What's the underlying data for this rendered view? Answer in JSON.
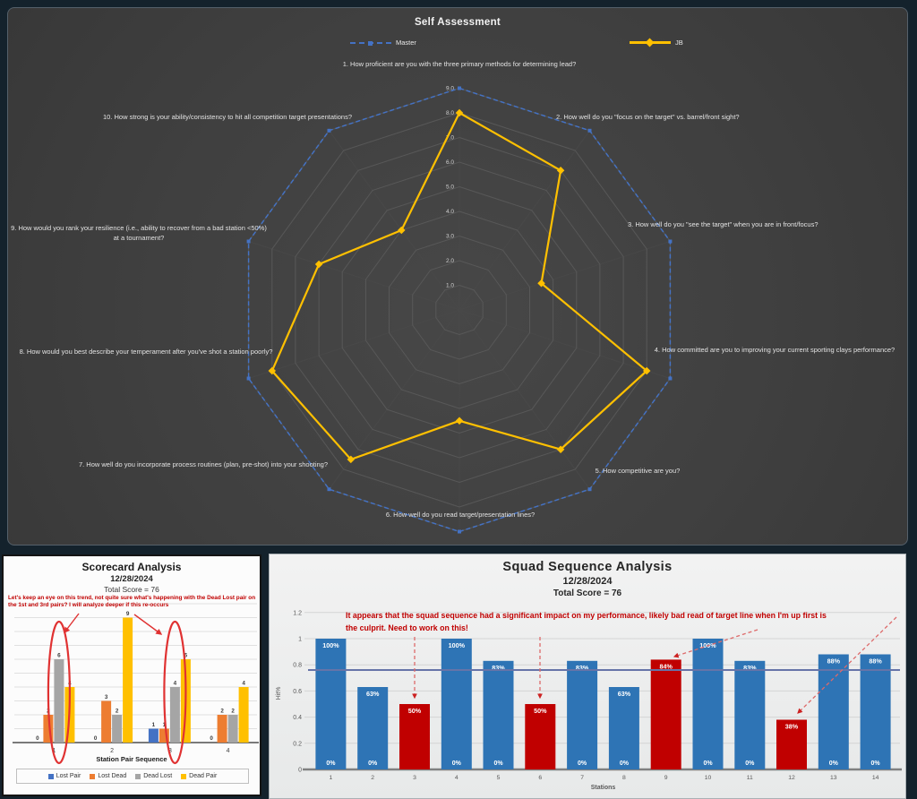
{
  "page": {
    "background": "#14222c"
  },
  "chart_data": [
    {
      "type": "radar",
      "title": "Self Assessment",
      "legend_position": "top",
      "axis_range": [
        0,
        9
      ],
      "ring_labels": [
        "9.0",
        "8.0",
        "7.0",
        "6.0",
        "5.0",
        "4.0",
        "3.0",
        "2.0",
        "1.0"
      ],
      "categories": [
        "1.  How proficient are you with the three primary methods for determining lead?",
        "2.  How well do you \"focus on the target\" vs. barrel/front sight?",
        "3.  How well do you \"see the target\" when you are in front/focus?",
        "4.  How committed are you to improving your current sporting clays performance?",
        "5.  How competitive are you?",
        "6.  How well do you read target/presentation lines?",
        "7.  How well do you incorporate process routines (plan, pre-shot) into your shooting?",
        "8.  How would you best describe your temperament after you've shot a station poorly?",
        "9.  How would you rank your resilience (i.e., ability to recover from a bad station <50%) at a tournament?",
        "10.  How strong is your ability/consistency to hit all competition target presentations?"
      ],
      "series": [
        {
          "name": "Master",
          "color": "#4472c4",
          "style": "dashed",
          "values": [
            9,
            9,
            9,
            9,
            9,
            9,
            9,
            9,
            9,
            9
          ]
        },
        {
          "name": "JB",
          "color": "#ffc000",
          "style": "solid",
          "values": [
            8,
            7,
            3.5,
            8,
            7,
            4.5,
            7.5,
            8,
            6,
            4
          ]
        }
      ]
    },
    {
      "type": "bar",
      "title": "Scorecard Analysis",
      "subtitle": "12/28/2024",
      "total": "Total Score = 76",
      "annotation": "Let's keep an eye on this trend, not quite sure what's happening with the Dead Lost pair on the 1st and 3rd pairs? I will analyze deeper if this re-occurs",
      "xlabel": "Station Pair Sequence",
      "categories": [
        "1",
        "2",
        "3",
        "4"
      ],
      "series": [
        {
          "name": "Lost Pair",
          "color": "#4472c4",
          "values": [
            0,
            0,
            1,
            0
          ]
        },
        {
          "name": "Lost Dead",
          "color": "#ed7d31",
          "values": [
            2,
            3,
            1,
            2
          ]
        },
        {
          "name": "Dead Lost",
          "color": "#a5a5a5",
          "values": [
            6,
            2,
            4,
            2
          ]
        },
        {
          "name": "Dead Pair",
          "color": "#ffc000",
          "values": [
            4,
            9,
            6,
            4
          ]
        }
      ],
      "ylim": [
        0,
        10
      ],
      "grid": true,
      "highlighted_groups": [
        1,
        3
      ],
      "highlighted_series": "Dead Lost"
    },
    {
      "type": "bar",
      "title": "Squad Sequence Analysis",
      "subtitle": "12/28/2024",
      "total": "Total Score = 76",
      "annotation": "It appears that the squad sequence had a significant impact on my performance, likely bad read of target line when I'm up first is the culprit.  Need to work on this!",
      "xlabel": "Stations",
      "ylabel": "Hit%",
      "ylim": [
        0,
        1.2
      ],
      "ytick_labels": [
        "0",
        "0.2",
        "0.4",
        "0.6",
        "0.8",
        "1",
        "1.2"
      ],
      "categories": [
        "1",
        "2",
        "3",
        "4",
        "5",
        "6",
        "7",
        "8",
        "9",
        "10",
        "11",
        "12",
        "13",
        "14"
      ],
      "values": [
        1.0,
        0.63,
        0.5,
        1.0,
        0.83,
        0.5,
        0.83,
        0.63,
        0.84,
        1.0,
        0.83,
        0.38,
        0.88,
        0.88
      ],
      "labels": [
        "100%",
        "63%",
        "50%",
        "100%",
        "83%",
        "50%",
        "83%",
        "63%",
        "84%",
        "100%",
        "83%",
        "38%",
        "88%",
        "88%"
      ],
      "base_label": "0%",
      "red_stations": [
        3,
        6,
        9,
        12
      ],
      "blue_color": "#2e74b5",
      "red_color": "#c00000",
      "average_line": 0.76,
      "average_line_color": "#6674a8"
    }
  ]
}
